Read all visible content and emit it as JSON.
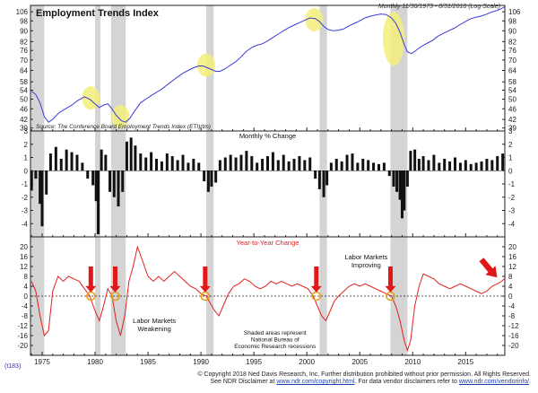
{
  "chart_data": [
    {
      "type": "line",
      "title": "Employment Trends Index",
      "subtitle": "Monthly 11/30/1973 - 8/31/2018 (Log Scale)",
      "source": "Source: The Conference Board Employment Trends Index (ETI)(tm)",
      "scale": "log",
      "ylim": [
        38,
        112
      ],
      "yticks": [
        39,
        42,
        46,
        50,
        54,
        58,
        64,
        70,
        76,
        82,
        90,
        98,
        106
      ],
      "xlim": [
        1973.9,
        2018.7
      ],
      "xticks": [
        1975,
        1980,
        1985,
        1990,
        1995,
        2000,
        2005,
        2010,
        2015
      ],
      "line_color": "#3b3bd6",
      "highlight_color": "#f3ef7a",
      "series": [
        {
          "x": [
            1974.0,
            1974.4,
            1974.8,
            1975.2,
            1975.6,
            1976.0,
            1976.6,
            1977.2,
            1977.8,
            1978.4,
            1979.0,
            1979.5,
            1980.0,
            1980.4,
            1980.8,
            1981.2,
            1981.6,
            1982.0,
            1982.5,
            1982.9,
            1983.3,
            1983.8,
            1984.3,
            1984.8,
            1985.3,
            1985.8,
            1986.3,
            1986.8,
            1987.3,
            1987.8,
            1988.3,
            1988.8,
            1989.3,
            1989.8,
            1990.2,
            1990.6,
            1991.0,
            1991.4,
            1991.8,
            1992.3,
            1992.8,
            1993.3,
            1993.8,
            1994.3,
            1994.8,
            1995.3,
            1995.8,
            1996.3,
            1996.8,
            1997.3,
            1997.8,
            1998.3,
            1998.8,
            1999.3,
            1999.8,
            2000.3,
            2000.8,
            2001.2,
            2001.6,
            2002.0,
            2002.5,
            2003.0,
            2003.5,
            2004.0,
            2004.5,
            2005.0,
            2005.5,
            2006.0,
            2006.5,
            2007.0,
            2007.5,
            2008.0,
            2008.4,
            2008.8,
            2009.2,
            2009.5,
            2009.9,
            2010.4,
            2010.9,
            2011.4,
            2011.9,
            2012.4,
            2012.9,
            2013.4,
            2013.9,
            2014.4,
            2014.9,
            2015.4,
            2015.9,
            2016.4,
            2016.9,
            2017.4,
            2017.9,
            2018.3,
            2018.67
          ],
          "y": [
            53.5,
            52,
            48.5,
            43,
            41,
            42,
            44.5,
            46,
            47.5,
            49.5,
            51,
            50,
            48,
            46.5,
            47.5,
            48,
            46,
            43.5,
            41.5,
            41,
            42.5,
            45.5,
            48.5,
            50,
            51.5,
            53,
            54.5,
            56.5,
            58.5,
            60.5,
            62.5,
            64,
            65.5,
            66.5,
            66.5,
            65.5,
            64.5,
            63.5,
            63.5,
            65,
            67,
            69,
            72,
            75.5,
            78,
            79.5,
            80.5,
            82.5,
            85,
            87.5,
            90,
            92.5,
            94.5,
            96.5,
            98.5,
            100.5,
            100,
            97.5,
            93.5,
            91,
            90,
            90.5,
            91.5,
            94,
            96,
            98,
            100.5,
            102,
            103,
            104,
            103.5,
            100.5,
            96,
            89,
            80,
            75,
            74,
            76.5,
            79,
            81,
            83,
            86,
            88,
            90,
            92,
            94.5,
            97,
            99.5,
            101,
            102,
            103.5,
            105.5,
            107,
            108.5,
            110.5
          ]
        }
      ],
      "highlights": [
        {
          "x": 1979.6,
          "y": 50.5
        },
        {
          "x": 1982.4,
          "y": 43
        },
        {
          "x": 1990.5,
          "y": 67
        },
        {
          "x": 2000.7,
          "y": 99
        },
        {
          "x": 2008.2,
          "y": 84
        }
      ]
    },
    {
      "type": "bar",
      "title": "Monthly % Change",
      "ylim": [
        -5,
        3
      ],
      "yticks": [
        -4,
        -3,
        -2,
        -1,
        0,
        1,
        2,
        3
      ],
      "xlim": [
        1973.9,
        2018.7
      ],
      "bar_color": "#111111",
      "series": [
        {
          "x": [
            1974.0,
            1974.4,
            1974.8,
            1975.0,
            1975.4,
            1975.8,
            1976.3,
            1976.8,
            1977.3,
            1977.8,
            1978.3,
            1978.8,
            1979.3,
            1979.8,
            1980.1,
            1980.3,
            1980.6,
            1981.0,
            1981.4,
            1981.8,
            1982.2,
            1982.6,
            1983.0,
            1983.4,
            1983.8,
            1984.3,
            1984.8,
            1985.3,
            1985.8,
            1986.3,
            1986.8,
            1987.3,
            1987.8,
            1988.3,
            1988.8,
            1989.3,
            1989.8,
            1990.3,
            1990.7,
            1991.0,
            1991.4,
            1991.8,
            1992.3,
            1992.8,
            1993.3,
            1993.8,
            1994.3,
            1994.8,
            1995.3,
            1995.8,
            1996.3,
            1996.8,
            1997.3,
            1997.8,
            1998.3,
            1998.8,
            1999.3,
            1999.8,
            2000.3,
            2000.8,
            2001.2,
            2001.6,
            2001.9,
            2002.3,
            2002.8,
            2003.3,
            2003.8,
            2004.3,
            2004.8,
            2005.3,
            2005.8,
            2006.3,
            2006.8,
            2007.3,
            2007.8,
            2008.2,
            2008.5,
            2008.8,
            2009.0,
            2009.2,
            2009.5,
            2009.8,
            2010.2,
            2010.6,
            2011.0,
            2011.5,
            2012.0,
            2012.5,
            2013.0,
            2013.5,
            2014.0,
            2014.5,
            2015.0,
            2015.5,
            2016.0,
            2016.5,
            2017.0,
            2017.5,
            2018.0,
            2018.5
          ],
          "values": [
            -1.5,
            -0.6,
            -2.5,
            -4.2,
            -1.8,
            1.3,
            1.8,
            0.9,
            1.6,
            1.4,
            1.2,
            0.6,
            -0.6,
            -1.1,
            -2.3,
            -4.8,
            1.6,
            1.2,
            -1.6,
            -2.0,
            -2.7,
            -1.6,
            2.2,
            2.5,
            1.9,
            1.3,
            1.0,
            1.4,
            0.9,
            0.7,
            1.3,
            1.1,
            0.8,
            1.2,
            0.6,
            0.9,
            0.6,
            -0.8,
            -1.6,
            -1.2,
            -0.9,
            0.8,
            1.0,
            1.2,
            1.0,
            1.2,
            1.5,
            1.1,
            0.6,
            0.9,
            1.1,
            1.4,
            0.8,
            1.2,
            0.7,
            0.9,
            1.1,
            0.8,
            1.0,
            -0.6,
            -1.4,
            -2.0,
            -1.1,
            0.6,
            0.9,
            0.7,
            1.2,
            1.3,
            0.6,
            0.9,
            0.8,
            0.6,
            0.5,
            0.6,
            -0.4,
            -1.2,
            -1.6,
            -2.2,
            -3.6,
            -3.0,
            -1.2,
            1.5,
            1.6,
            0.9,
            1.1,
            0.8,
            1.2,
            0.6,
            0.9,
            0.7,
            1.0,
            0.6,
            0.8,
            0.5,
            0.6,
            0.7,
            0.9,
            0.8,
            1.1,
            1.3
          ]
        }
      ]
    },
    {
      "type": "line",
      "title": "Year-to-Year Change",
      "ylim": [
        -24,
        24
      ],
      "yticks": [
        -20,
        -16,
        -12,
        -8,
        -4,
        0,
        4,
        8,
        12,
        16,
        20
      ],
      "xlim": [
        1973.9,
        2018.7
      ],
      "xticks": [
        1975,
        1980,
        1985,
        1990,
        1995,
        2000,
        2005,
        2010,
        2015
      ],
      "line_color": "#e02020",
      "series": [
        {
          "x": [
            1974.0,
            1974.4,
            1974.8,
            1975.2,
            1975.6,
            1976.0,
            1976.5,
            1977.0,
            1977.5,
            1978.0,
            1978.5,
            1979.0,
            1979.5,
            1980.0,
            1980.4,
            1980.8,
            1981.2,
            1981.6,
            1982.0,
            1982.4,
            1982.8,
            1983.2,
            1983.6,
            1984.0,
            1984.5,
            1985.0,
            1985.5,
            1986.0,
            1986.5,
            1987.0,
            1987.5,
            1988.0,
            1988.5,
            1989.0,
            1989.5,
            1990.0,
            1990.5,
            1990.9,
            1991.3,
            1991.7,
            1992.1,
            1992.6,
            1993.1,
            1993.6,
            1994.1,
            1994.6,
            1995.1,
            1995.6,
            1996.1,
            1996.6,
            1997.1,
            1997.6,
            1998.1,
            1998.6,
            1999.1,
            1999.6,
            2000.1,
            2000.6,
            2001.0,
            2001.4,
            2001.8,
            2002.2,
            2002.6,
            2003.0,
            2003.5,
            2004.0,
            2004.5,
            2005.0,
            2005.5,
            2006.0,
            2006.5,
            2007.0,
            2007.5,
            2008.0,
            2008.4,
            2008.8,
            2009.2,
            2009.5,
            2009.8,
            2010.2,
            2010.6,
            2011.0,
            2011.5,
            2012.0,
            2012.5,
            2013.0,
            2013.5,
            2014.0,
            2014.5,
            2015.0,
            2015.5,
            2016.0,
            2016.5,
            2017.0,
            2017.5,
            2018.0,
            2018.4,
            2018.67
          ],
          "y": [
            6,
            2,
            -8,
            -16,
            -14,
            2,
            8,
            6,
            8,
            7,
            6,
            3,
            0,
            -6,
            -10,
            -4,
            3,
            0,
            -10,
            -16,
            -8,
            6,
            12,
            20,
            14,
            8,
            6,
            8,
            6,
            8,
            10,
            8,
            6,
            4,
            3,
            1,
            0,
            -3,
            -6,
            -8,
            -4,
            1,
            4,
            5,
            7,
            6,
            4,
            3,
            4,
            6,
            5,
            6,
            5,
            4,
            5,
            4,
            3,
            0,
            -4,
            -8,
            -10,
            -6,
            -2,
            0,
            2,
            4,
            5,
            4,
            5,
            4,
            3,
            2,
            1,
            0,
            -4,
            -10,
            -18,
            -22,
            -18,
            -4,
            4,
            9,
            8,
            7,
            5,
            4,
            3,
            4,
            5,
            4,
            3,
            2,
            1,
            2,
            4,
            5,
            6,
            7
          ]
        }
      ],
      "markers": [
        1979.6,
        1981.9,
        1990.4,
        2000.9,
        2007.9
      ],
      "arrows": [
        1979.6,
        1981.9,
        1990.4,
        2000.9,
        2007.9
      ],
      "trend_arrow": {
        "x": 2017.3,
        "y": 9
      }
    }
  ],
  "recessions": [
    [
      1973.9,
      1975.2
    ],
    [
      1980.0,
      1980.5
    ],
    [
      1981.5,
      1982.9
    ],
    [
      1990.5,
      1991.2
    ],
    [
      2001.2,
      2001.9
    ],
    [
      2007.9,
      2009.5
    ]
  ],
  "annotations": {
    "markets_weakening": "Labor Markets\nWeakening",
    "markets_improving": "Labor Markets\nImproving",
    "shaded_note": "Shaded areas represent\nNational Bureau of\nEconomic Research recessions"
  },
  "footer": {
    "code": "(t183)",
    "copyright": "© Copyright 2018 Ned Davis Research, Inc.  Further distribution prohibited without prior permission.  All Rights Reserved.",
    "disclaimer_prefix": "See NDR Disclaimer at ",
    "disclaimer_link1": "www.ndr.com/copyright.html",
    "disclaimer_middle": ".  For data vendor disclaimers refer to ",
    "disclaimer_link2": "www.ndr.com/vendorinfo/",
    "disclaimer_suffix": "."
  }
}
